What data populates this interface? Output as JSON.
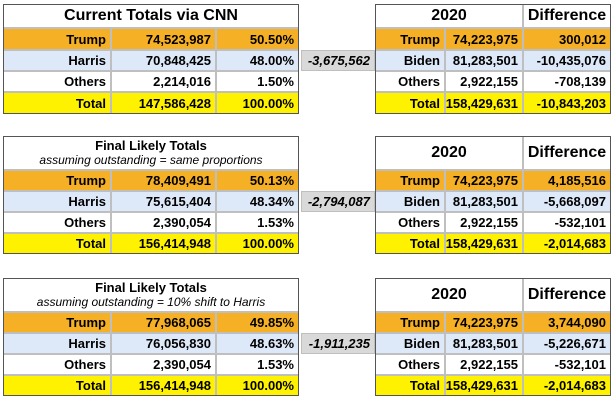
{
  "block1": {
    "title": "Current Totals via CNN",
    "rows": [
      {
        "label": "Trump",
        "votes": "74,523,987",
        "pct": "50.50%"
      },
      {
        "label": "Harris",
        "votes": "70,848,425",
        "pct": "48.00%"
      },
      {
        "label": "Others",
        "votes": "2,214,016",
        "pct": "1.50%"
      },
      {
        "label": "Total",
        "votes": "147,586,428",
        "pct": "100.00%"
      }
    ],
    "margin": "-3,675,562",
    "right_header": {
      "year": "2020",
      "diff": "Difference"
    },
    "right_rows": [
      {
        "label": "Trump",
        "votes": "74,223,975",
        "diff": "300,012"
      },
      {
        "label": "Biden",
        "votes": "81,283,501",
        "diff": "-10,435,076"
      },
      {
        "label": "Others",
        "votes": "2,922,155",
        "diff": "-708,139"
      },
      {
        "label": "Total",
        "votes": "158,429,631",
        "diff": "-10,843,203"
      }
    ]
  },
  "block2": {
    "title": "Final Likely Totals",
    "subtitle": "assuming outstanding = same proportions",
    "rows": [
      {
        "label": "Trump",
        "votes": "78,409,491",
        "pct": "50.13%"
      },
      {
        "label": "Harris",
        "votes": "75,615,404",
        "pct": "48.34%"
      },
      {
        "label": "Others",
        "votes": "2,390,054",
        "pct": "1.53%"
      },
      {
        "label": "Total",
        "votes": "156,414,948",
        "pct": "100.00%"
      }
    ],
    "margin": "-2,794,087",
    "right_header": {
      "year": "2020",
      "diff": "Difference"
    },
    "right_rows": [
      {
        "label": "Trump",
        "votes": "74,223,975",
        "diff": "4,185,516"
      },
      {
        "label": "Biden",
        "votes": "81,283,501",
        "diff": "-5,668,097"
      },
      {
        "label": "Others",
        "votes": "2,922,155",
        "diff": "-532,101"
      },
      {
        "label": "Total",
        "votes": "158,429,631",
        "diff": "-2,014,683"
      }
    ]
  },
  "block3": {
    "title": "Final Likely Totals",
    "subtitle": "assuming outstanding = 10% shift to Harris",
    "rows": [
      {
        "label": "Trump",
        "votes": "77,968,065",
        "pct": "49.85%"
      },
      {
        "label": "Harris",
        "votes": "76,056,830",
        "pct": "48.63%"
      },
      {
        "label": "Others",
        "votes": "2,390,054",
        "pct": "1.53%"
      },
      {
        "label": "Total",
        "votes": "156,414,948",
        "pct": "100.00%"
      }
    ],
    "margin": "-1,911,235",
    "right_header": {
      "year": "2020",
      "diff": "Difference"
    },
    "right_rows": [
      {
        "label": "Trump",
        "votes": "74,223,975",
        "diff": "3,744,090"
      },
      {
        "label": "Biden",
        "votes": "81,283,501",
        "diff": "-5,226,671"
      },
      {
        "label": "Others",
        "votes": "2,922,155",
        "diff": "-532,101"
      },
      {
        "label": "Total",
        "votes": "158,429,631",
        "diff": "-2,014,683"
      }
    ]
  },
  "colors": {
    "trump_row": "#f6b026",
    "harris_row": "#dde9f8",
    "total_row": "#fff200",
    "margin_cell": "#d9d9d9"
  }
}
